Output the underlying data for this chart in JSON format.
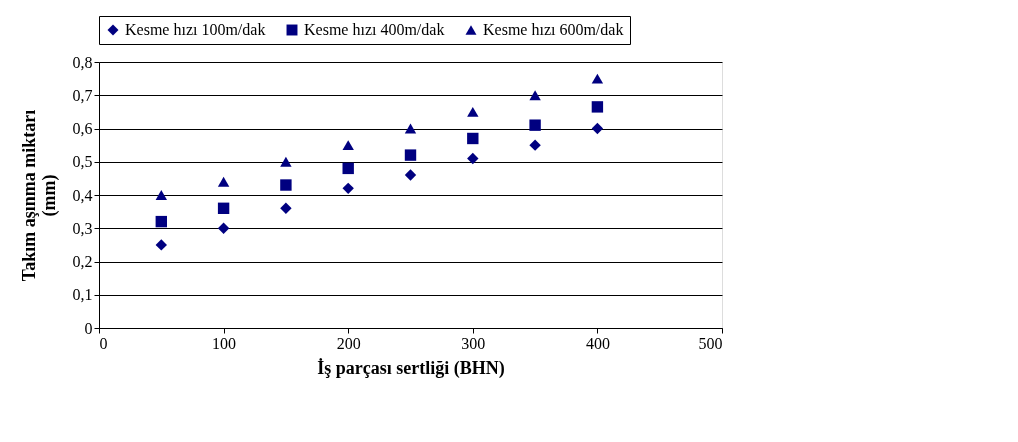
{
  "chart_data": {
    "type": "scatter",
    "xlabel": "İş parçası sertliği (BHN)",
    "ylabel": "Takım aşınma miktarı\n(mm)",
    "x": [
      50,
      100,
      150,
      200,
      250,
      300,
      350,
      400
    ],
    "series": [
      {
        "name": "Kesme hızı 100m/dak",
        "color": "#000080",
        "marker": "diamond",
        "values": [
          0.25,
          0.3,
          0.36,
          0.42,
          0.46,
          0.51,
          0.55,
          0.6
        ]
      },
      {
        "name": "Kesme hızı 400m/dak",
        "color": "#000080",
        "marker": "square",
        "values": [
          0.32,
          0.36,
          0.43,
          0.48,
          0.52,
          0.57,
          0.61,
          0.665
        ]
      },
      {
        "name": "Kesme hızı 600m/dak",
        "color": "#000080",
        "marker": "triangle",
        "values": [
          0.4,
          0.44,
          0.5,
          0.55,
          0.6,
          0.65,
          0.7,
          0.75
        ]
      }
    ],
    "xlim": [
      0,
      500
    ],
    "xticks": [
      0,
      100,
      200,
      300,
      400,
      500
    ],
    "ylim": [
      0,
      0.8
    ],
    "yticks": [
      {
        "value": 0,
        "label": "0"
      },
      {
        "value": 0.1,
        "label": "0,1"
      },
      {
        "value": 0.2,
        "label": "0,2"
      },
      {
        "value": 0.3,
        "label": "0,3"
      },
      {
        "value": 0.4,
        "label": "0,4"
      },
      {
        "value": 0.5,
        "label": "0,5"
      },
      {
        "value": 0.6,
        "label": "0,6"
      },
      {
        "value": 0.7,
        "label": "0,7"
      },
      {
        "value": 0.8,
        "label": "0,8"
      }
    ],
    "grid": "y",
    "legend": "top"
  }
}
